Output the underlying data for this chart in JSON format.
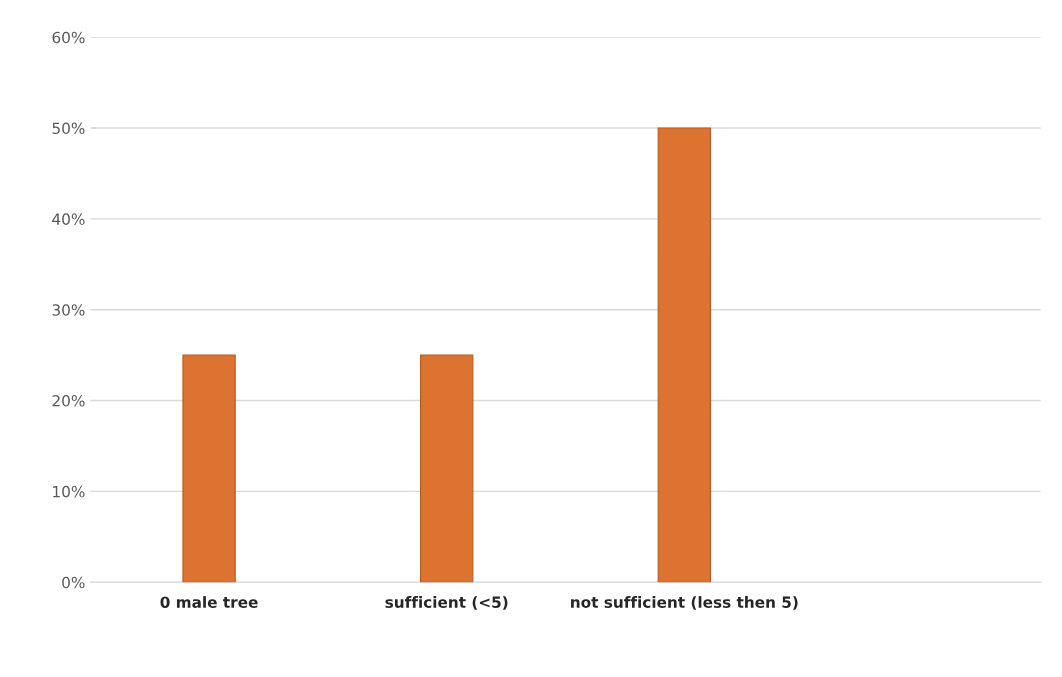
{
  "chart_data": {
    "type": "bar",
    "categories": [
      "0 male tree",
      "sufficient (<5)",
      "not sufficient (less then 5)",
      null
    ],
    "values": [
      25,
      25,
      50,
      null
    ],
    "color": "#dd7331",
    "ylim": [
      0,
      60
    ],
    "yticks": [
      {
        "value": 0,
        "label": "0%"
      },
      {
        "value": 10,
        "label": "10%"
      },
      {
        "value": 20,
        "label": "20%"
      },
      {
        "value": 30,
        "label": "30%"
      },
      {
        "value": 40,
        "label": "40%"
      },
      {
        "value": 50,
        "label": "50%"
      },
      {
        "value": 60,
        "label": "60%"
      }
    ],
    "grid": "y"
  }
}
